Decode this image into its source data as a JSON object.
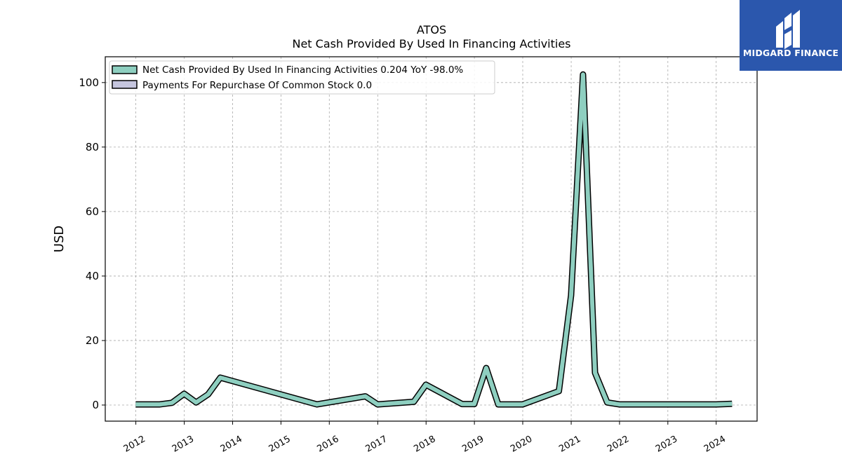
{
  "brand": {
    "name": "MIDGARD FINANCE",
    "bg_color": "#2b57ad"
  },
  "chart_data": {
    "type": "line",
    "title": "ATOS",
    "subtitle": "Net Cash Provided By Used In Financing Activities",
    "xlabel": "",
    "ylabel": "USD",
    "ylim": [
      -5,
      108
    ],
    "yticks": [
      0,
      20,
      40,
      60,
      80,
      100
    ],
    "xlim": [
      "2011-05-15",
      "2024-11-05"
    ],
    "xticks": [
      "2012",
      "2013",
      "2014",
      "2015",
      "2016",
      "2017",
      "2018",
      "2019",
      "2020",
      "2021",
      "2022",
      "2023",
      "2024"
    ],
    "grid": true,
    "legend_position": "upper-left",
    "series": [
      {
        "name": "Net Cash Provided By Used In Financing Activities",
        "legend_label": "Net Cash Provided By Used In Financing Activities  0.204 YoY -98.0%",
        "color": "#8ecfc0",
        "x": [
          "2011-12-31",
          "2012-06-30",
          "2012-09-30",
          "2012-12-31",
          "2013-03-31",
          "2013-06-30",
          "2013-09-30",
          "2015-09-30",
          "2016-09-30",
          "2016-12-31",
          "2017-09-30",
          "2017-12-31",
          "2018-09-30",
          "2018-12-31",
          "2019-03-31",
          "2019-06-30",
          "2019-09-30",
          "2019-12-31",
          "2020-09-30",
          "2020-12-31",
          "2021-03-31",
          "2021-06-30",
          "2021-09-30",
          "2021-12-31",
          "2022-12-31",
          "2023-12-31",
          "2024-04-30"
        ],
        "values": [
          0.2,
          0.2,
          0.7,
          3.5,
          0.8,
          3.3,
          8.5,
          0.2,
          2.7,
          0.2,
          1.0,
          6.3,
          0.3,
          0.3,
          11.5,
          0.2,
          0.2,
          0.2,
          4.3,
          34.0,
          102.5,
          10.0,
          0.8,
          0.2,
          0.2,
          0.2,
          0.4
        ]
      },
      {
        "name": "Payments For Repurchase Of Common Stock",
        "legend_label": "Payments For Repurchase Of Common Stock  0.0",
        "color": "#c5c5de",
        "x": [],
        "values": []
      }
    ]
  }
}
